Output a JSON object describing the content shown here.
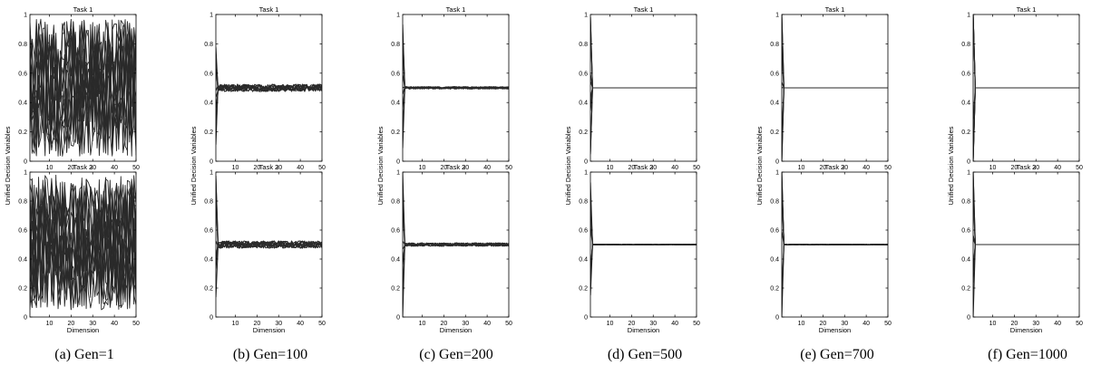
{
  "figure": {
    "subtitles": [
      "(a)  Gen=1",
      "(b)  Gen=100",
      "(c)  Gen=200",
      "(d)  Gen=500",
      "(e)  Gen=700",
      "(f)  Gen=1000"
    ]
  },
  "chart_data": [
    {
      "type": "line",
      "panel": "a",
      "generation": 1,
      "tasks": [
        {
          "title": "Task 1",
          "mode": "random",
          "low": 0.03,
          "high": 0.97
        },
        {
          "title": "Task 2",
          "mode": "random",
          "low": 0.05,
          "high": 0.98
        }
      ],
      "xlabel": "Dimension",
      "ylabel": "Unified Decision Variables",
      "xlim": [
        1,
        50
      ],
      "ylim": [
        0,
        1
      ],
      "xticks": [
        10,
        20,
        30,
        40,
        50
      ],
      "yticks": [
        0,
        0.2,
        0.4,
        0.6,
        0.8,
        1
      ]
    },
    {
      "type": "line",
      "panel": "b",
      "generation": 100,
      "tasks": [
        {
          "title": "Task 1",
          "mode": "converged",
          "start_spread": 0.5,
          "level": 0.5,
          "noise": 0.025
        },
        {
          "title": "Task 2",
          "mode": "converged",
          "start_spread": 0.5,
          "level": 0.5,
          "noise": 0.025
        }
      ],
      "xlabel": "Dimension",
      "ylabel": "Unified Decision Variables",
      "xlim": [
        1,
        50
      ],
      "ylim": [
        0,
        1
      ],
      "xticks": [
        10,
        20,
        30,
        40,
        50
      ],
      "yticks": [
        0,
        0.2,
        0.4,
        0.6,
        0.8,
        1
      ]
    },
    {
      "type": "line",
      "panel": "c",
      "generation": 200,
      "tasks": [
        {
          "title": "Task 1",
          "mode": "converged",
          "start_spread": 0.5,
          "level": 0.5,
          "noise": 0.008
        },
        {
          "title": "Task 2",
          "mode": "converged",
          "start_spread": 0.5,
          "level": 0.5,
          "noise": 0.012
        }
      ],
      "xlabel": "Dimension",
      "ylabel": "Unified Decision Variables",
      "xlim": [
        1,
        50
      ],
      "ylim": [
        0,
        1
      ],
      "xticks": [
        10,
        20,
        30,
        40,
        50
      ],
      "yticks": [
        0,
        0.2,
        0.4,
        0.6,
        0.8,
        1
      ]
    },
    {
      "type": "line",
      "panel": "d",
      "generation": 500,
      "tasks": [
        {
          "title": "Task 1",
          "mode": "converged",
          "start_spread": 0.5,
          "level": 0.5,
          "noise": 0.0
        },
        {
          "title": "Task 2",
          "mode": "converged",
          "start_spread": 0.55,
          "level": 0.5,
          "noise": 0.003
        }
      ],
      "xlabel": "Dimension",
      "ylabel": "Unified Decision Variables",
      "xlim": [
        1,
        50
      ],
      "ylim": [
        0,
        1
      ],
      "xticks": [
        10,
        20,
        30,
        40,
        50
      ],
      "yticks": [
        0,
        0.2,
        0.4,
        0.6,
        0.8,
        1
      ]
    },
    {
      "type": "line",
      "panel": "e",
      "generation": 700,
      "tasks": [
        {
          "title": "Task 1",
          "mode": "converged",
          "start_spread": 0.8,
          "level": 0.5,
          "noise": 0.0
        },
        {
          "title": "Task 2",
          "mode": "converged",
          "start_spread": 0.6,
          "level": 0.5,
          "noise": 0.003
        }
      ],
      "xlabel": "Dimension",
      "ylabel": "Unified Decision Variables",
      "xlim": [
        1,
        50
      ],
      "ylim": [
        0,
        1
      ],
      "xticks": [
        10,
        20,
        30,
        40,
        50
      ],
      "yticks": [
        0,
        0.2,
        0.4,
        0.6,
        0.8,
        1
      ]
    },
    {
      "type": "line",
      "panel": "f",
      "generation": 1000,
      "tasks": [
        {
          "title": "Task 1",
          "mode": "converged",
          "start_spread": 1.0,
          "level": 0.5,
          "noise": 0.0
        },
        {
          "title": "Task 2",
          "mode": "converged",
          "start_spread": 0.7,
          "level": 0.5,
          "noise": 0.0
        }
      ],
      "xlabel": "Dimension",
      "ylabel": "Unified Decision Variables",
      "xlim": [
        1,
        50
      ],
      "ylim": [
        0,
        1
      ],
      "xticks": [
        10,
        20,
        30,
        40,
        50
      ],
      "yticks": [
        0,
        0.2,
        0.4,
        0.6,
        0.8,
        1
      ]
    }
  ],
  "colors": {
    "lines": "#2a2a2a",
    "axes": "#000000",
    "text": "#000000"
  }
}
